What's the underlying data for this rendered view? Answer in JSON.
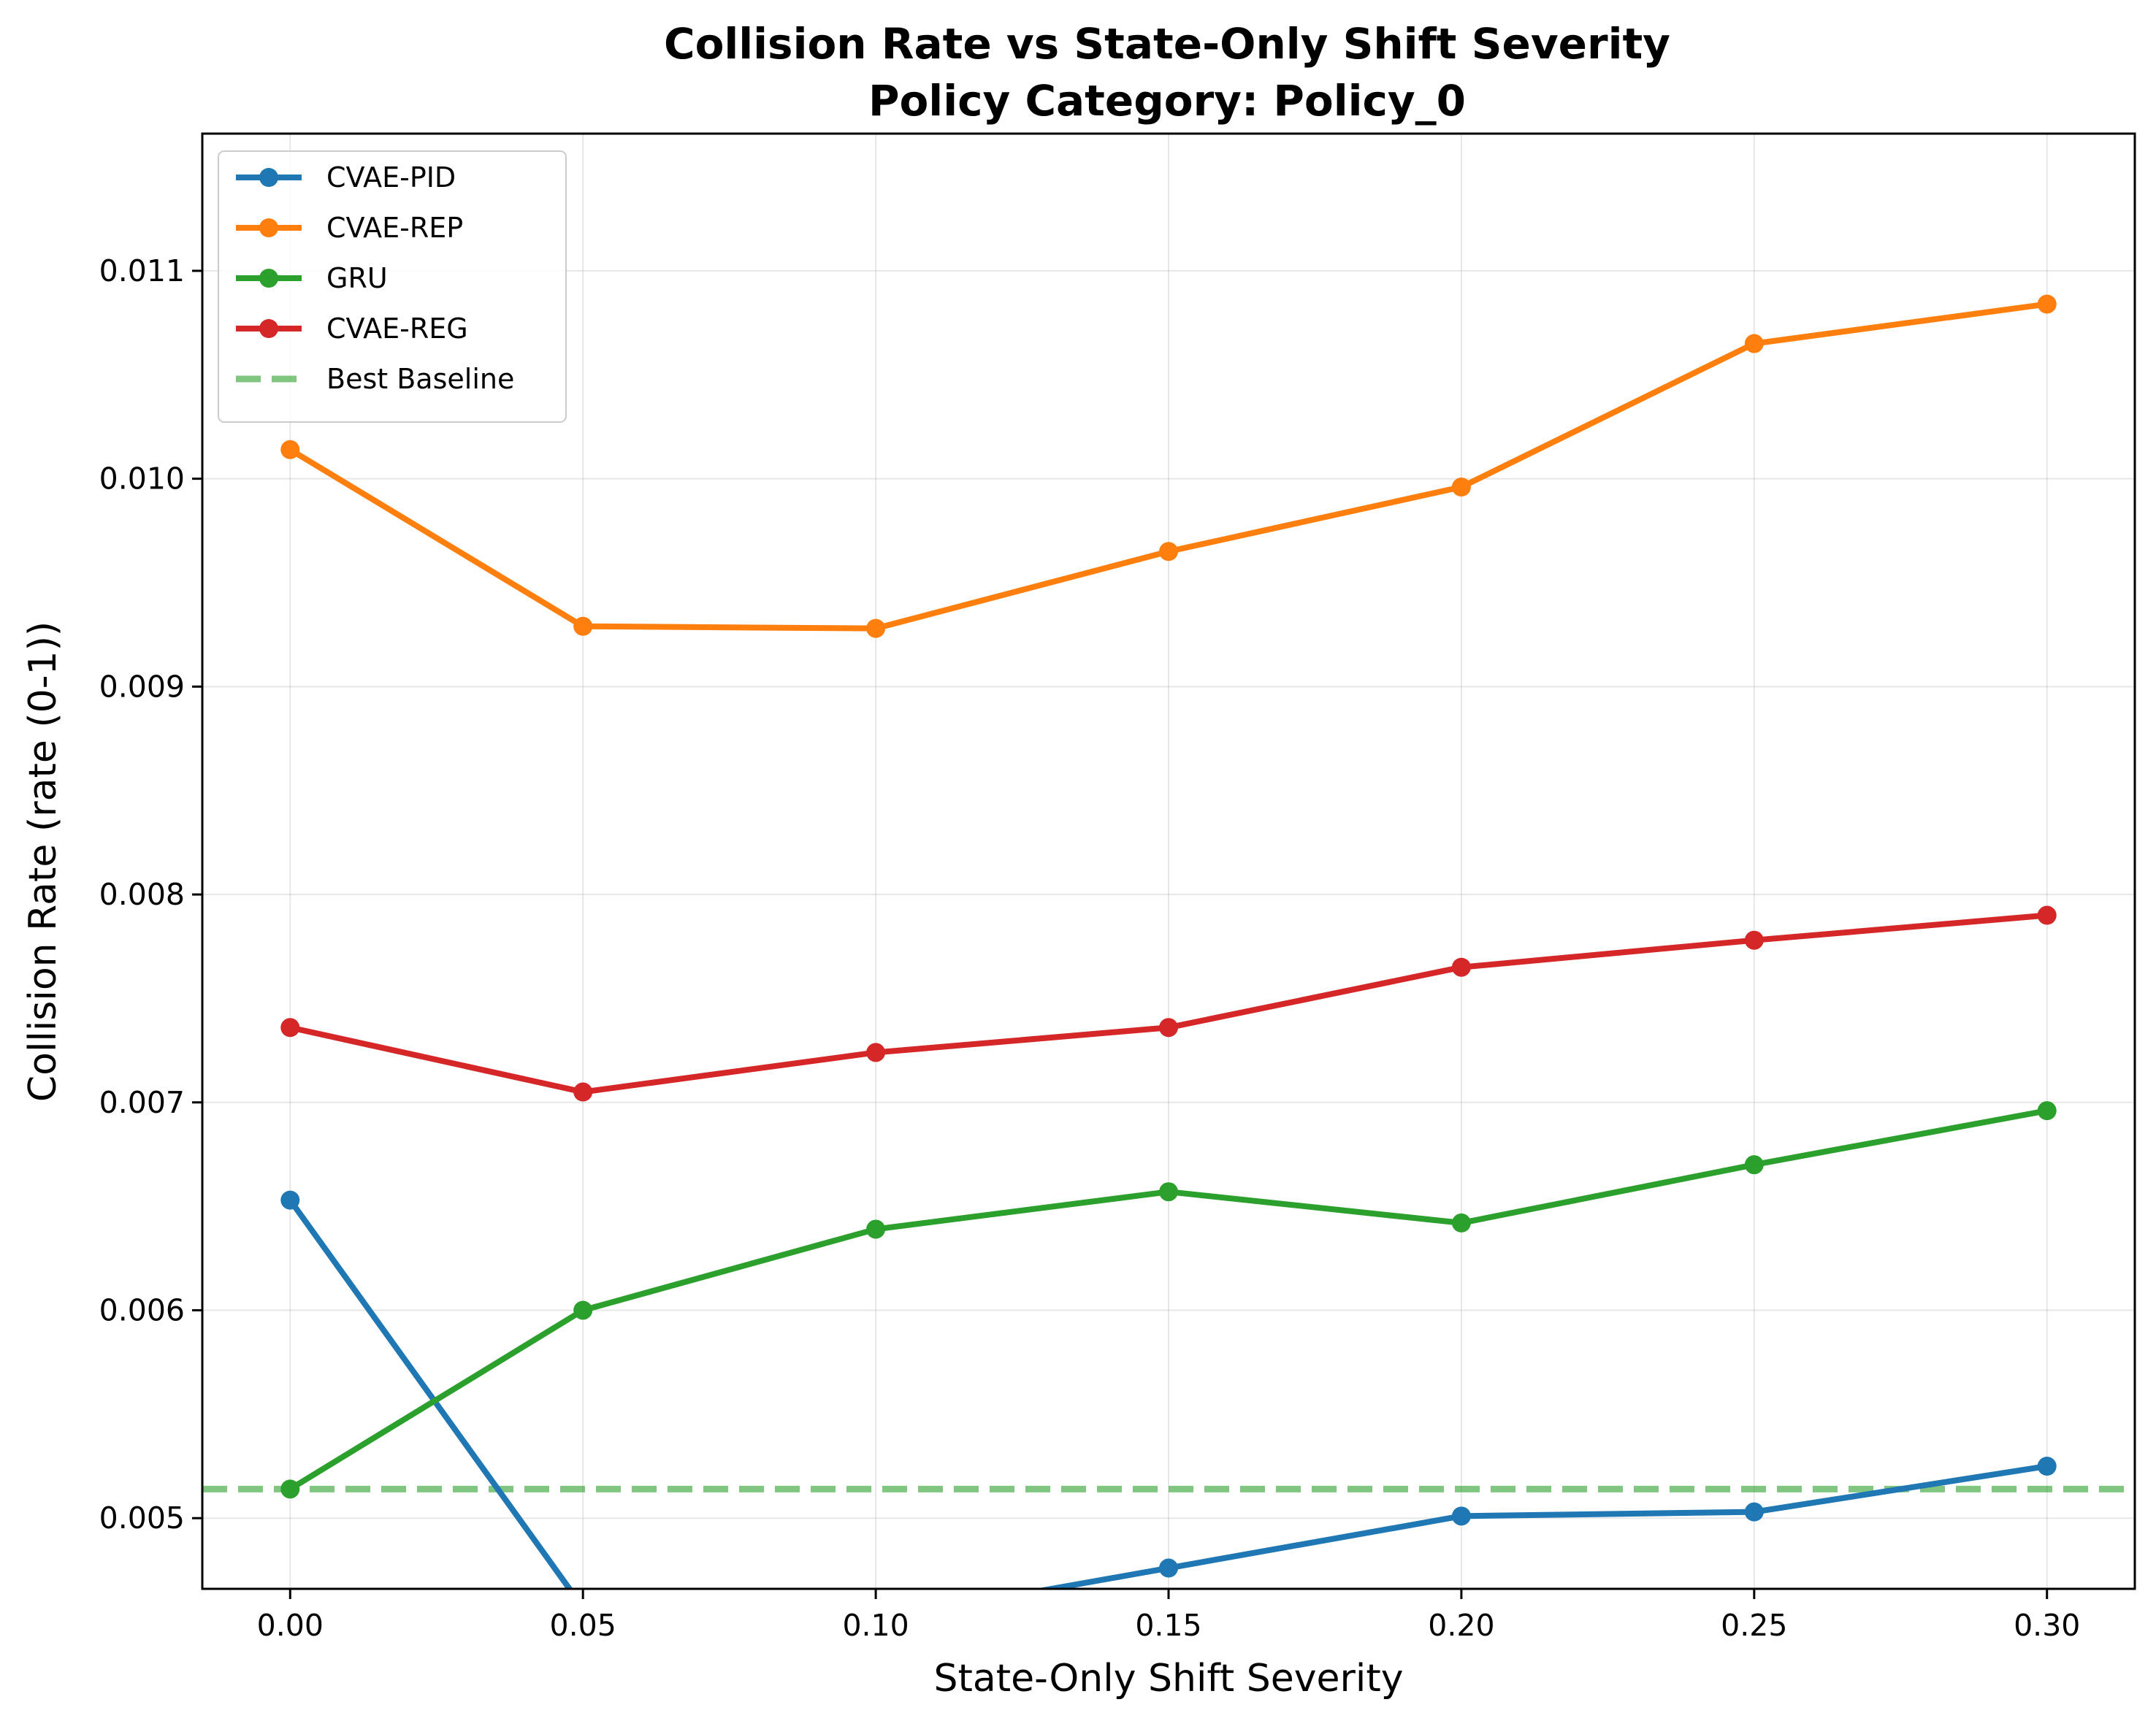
{
  "chart_data": {
    "type": "line",
    "title": "Collision Rate vs State-Only Shift Severity",
    "subtitle": "Policy Category: Policy_0",
    "xlabel": "State-Only Shift Severity",
    "ylabel": "Collision Rate (rate (0-1))",
    "x": [
      0.0,
      0.05,
      0.1,
      0.15,
      0.2,
      0.25,
      0.3
    ],
    "x_tick_labels": [
      "0.00",
      "0.05",
      "0.10",
      "0.15",
      "0.20",
      "0.25",
      "0.30"
    ],
    "y_ticks": [
      0.005,
      0.006,
      0.007,
      0.008,
      0.009,
      0.01,
      0.011
    ],
    "y_tick_labels": [
      "0.005",
      "0.006",
      "0.007",
      "0.008",
      "0.009",
      "0.010",
      "0.011"
    ],
    "xlim": [
      -0.015,
      0.315
    ],
    "ylim": [
      0.00466,
      0.01166
    ],
    "grid": true,
    "legend_position": "top-left",
    "series": [
      {
        "name": "CVAE-PID",
        "color": "#1f77b4",
        "values": [
          0.00653,
          0.00457,
          0.00451,
          0.00476,
          0.00501,
          0.00503,
          0.00525
        ]
      },
      {
        "name": "CVAE-REP",
        "color": "#ff7f0e",
        "values": [
          0.01014,
          0.00929,
          0.00928,
          0.00965,
          0.00996,
          0.01065,
          0.01084
        ]
      },
      {
        "name": "GRU",
        "color": "#2ca02c",
        "values": [
          0.00514,
          0.006,
          0.00639,
          0.00657,
          0.00642,
          0.0067,
          0.00696
        ]
      },
      {
        "name": "CVAE-REG",
        "color": "#d62728",
        "values": [
          0.00736,
          0.00705,
          0.00724,
          0.00736,
          0.00765,
          0.00778,
          0.0079
        ]
      }
    ],
    "reference_lines": [
      {
        "name": "Best Baseline",
        "color": "#2ca02c",
        "style": "dashed",
        "opacity": 0.6,
        "y": 0.00514
      }
    ]
  }
}
